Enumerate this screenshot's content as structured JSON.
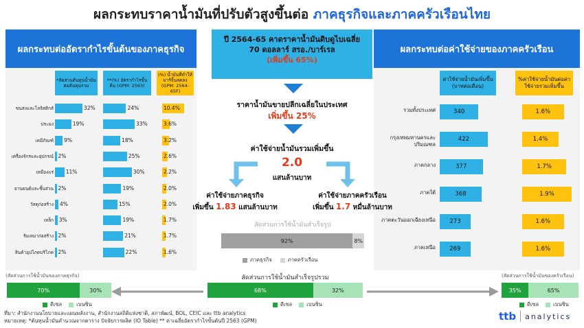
{
  "title": {
    "main": "ผลกระทบราคาน้ำมันที่ปรับตัวสูงขึ้นต่อ ",
    "highlight": "ภาคธุรกิจและภาคครัวเรือนไทย"
  },
  "left_panel": {
    "banner": "ผลกระทบต่ออัตรากำไรขั้นต้นของภาคธุรกิจ",
    "col1": "*สัดส่วนต้นทุนน้ำมันต่อต้นทุนรวม",
    "col2": "**(%) อัตรากำไรขั้นต้น (GPM: 2563)",
    "col3": "(%) น้ำมันที่ทำให้มาร์จิ้นลดลง (GPM: 2564-65F)",
    "rows": [
      {
        "label": "ขนส่งและโลจิสติกส์",
        "share": "32%",
        "share_v": 32,
        "gpm": "24%",
        "gpm_v": 24,
        "drop": "10.4%",
        "drop_v": 10.4
      },
      {
        "label": "ประมง",
        "share": "19%",
        "share_v": 19,
        "gpm": "33%",
        "gpm_v": 33,
        "drop": "3.6%",
        "drop_v": 3.6
      },
      {
        "label": "เคมีภัณฑ์",
        "share": "9%",
        "share_v": 9,
        "gpm": "18%",
        "gpm_v": 18,
        "drop": "3.2%",
        "drop_v": 3.2
      },
      {
        "label": "เครื่องจักรและอุปกรณ์",
        "share": "2%",
        "share_v": 2,
        "gpm": "25%",
        "gpm_v": 25,
        "drop": "2.6%",
        "drop_v": 2.6
      },
      {
        "label": "เหมืองแร่",
        "share": "11%",
        "share_v": 11,
        "gpm": "30%",
        "gpm_v": 30,
        "drop": "2.2%",
        "drop_v": 2.2
      },
      {
        "label": "ยานยนต์และชิ้นส่วน",
        "share": "2%",
        "share_v": 2,
        "gpm": "19%",
        "gpm_v": 19,
        "drop": "2.0%",
        "drop_v": 2.0
      },
      {
        "label": "วัสดุก่อสร้าง",
        "share": "4%",
        "share_v": 4,
        "gpm": "15%",
        "gpm_v": 15,
        "drop": "2.0%",
        "drop_v": 2.0
      },
      {
        "label": "เหล็ก",
        "share": "3%",
        "share_v": 3,
        "gpm": "19%",
        "gpm_v": 19,
        "drop": "1.7%",
        "drop_v": 1.7
      },
      {
        "label": "รับเหมาก่อสร้าง",
        "share": "2%",
        "share_v": 2,
        "gpm": "21%",
        "gpm_v": 21,
        "drop": "1.7%",
        "drop_v": 1.7
      },
      {
        "label": "สินค้าอุปโภคบริโภค",
        "share": "2%",
        "share_v": 2,
        "gpm": "22%",
        "gpm_v": 22,
        "drop": "1.6%",
        "drop_v": 1.6
      }
    ],
    "mix_title": "(สัดส่วนการใช้น้ำมันของภาคธุรกิจ)",
    "mix": [
      {
        "label": "70%",
        "value": 70
      },
      {
        "label": "30%",
        "value": 30
      }
    ]
  },
  "middle": {
    "box_line1": "ปี 2564-65 คาดราคาน้ำมันดิบดูไบเฉลี่ย",
    "box_line2": "70 ดอลลาร์ สรอ./บาร์เรล",
    "box_line3": "(เพิ่มขึ้น 65%)",
    "retail_line1": "ราคาน้ำมันขายปลีกเฉลี่ยในประเทศ",
    "retail_line2": "เพิ่มขึ้น 25%",
    "total_line1": "ค่าใช้จ่ายน้ำมันรวมเพิ่มขึ้น",
    "total_value": "2.0",
    "total_unit": "แสนล้านบาท",
    "biz_line1": "ค่าใช้จ่ายภาคธุรกิจ",
    "biz_prefix": "เพิ่มขึ้น ",
    "biz_value": "1.83",
    "biz_suffix": " แสนล้านบาท",
    "hh_line1": "ค่าใช้จ่ายภาคครัวเรือน",
    "hh_prefix": "เพิ่มขึ้น ",
    "hh_value": "1.7",
    "hh_suffix": " หมื่นล้านบาท",
    "refined_title": "สัดส่วนการใช้น้ำมันสำเร็จรูป",
    "refined": [
      {
        "label": "92%",
        "value": 92
      },
      {
        "label": "8%",
        "value": 8
      }
    ],
    "refined_legend": [
      "ภาคธุรกิจ",
      "ภาคครัวเรือน"
    ],
    "overall_title": "สัดส่วนการใช้น้ำมันสำเร็จรูปรวม",
    "overall": [
      {
        "label": "68%",
        "value": 68
      },
      {
        "label": "32%",
        "value": 32
      }
    ]
  },
  "right_panel": {
    "banner": "ผลกระทบต่อค่าใช้จ่ายของภาคครัวเรือน",
    "col1": "ค่าใช้จ่ายน้ำมันเพิ่มขึ้น (บาทต่อเดือน)",
    "col2": "%ค่าใช้จ่ายน้ำมันต่อค่าใช้จ่ายรวมเพิ่มขึ้น",
    "rows": [
      {
        "label": "รวมทั้งประเทศ",
        "baht": "340",
        "baht_v": 340,
        "pct": "1.6%",
        "pct_v": 1.6
      },
      {
        "label": "กรุงเทพมหานครและปริมณฑล",
        "baht": "422",
        "baht_v": 422,
        "pct": "1.4%",
        "pct_v": 1.4
      },
      {
        "label": "ภาคกลาง",
        "baht": "377",
        "baht_v": 377,
        "pct": "1.7%",
        "pct_v": 1.7
      },
      {
        "label": "ภาคใต้",
        "baht": "368",
        "baht_v": 368,
        "pct": "1.9%",
        "pct_v": 1.9
      },
      {
        "label": "ภาคตะวันออกเฉียงเหนือ",
        "baht": "273",
        "baht_v": 273,
        "pct": "1.6%",
        "pct_v": 1.6
      },
      {
        "label": "ภาคเหนือ",
        "baht": "269",
        "baht_v": 269,
        "pct": "1.6%",
        "pct_v": 1.6
      }
    ],
    "mix_title": "(สัดส่วนการใช้น้ำมันของครัวเรือน)",
    "mix": [
      {
        "label": "35%",
        "value": 35
      },
      {
        "label": "65%",
        "value": 65
      }
    ]
  },
  "fuel_legend": [
    "ดีเซล",
    "เบนซิน"
  ],
  "footer": {
    "source": "ที่มา: สำนักงานนโยบายและแผนพลังงาน, สำนักงานสถิติแห่งชาติ, สภาพัฒน์, BOL, CEIC และ ttb analytics",
    "note": "หมายเหตุ: *ต้นทุนน้ำมันคำนวณจากตาราง ปัจจัยการผลิต (IO Table) ** ค่าเฉลี่ยอัตรากำไรขั้นต้นปี 2563 (GPM)"
  },
  "logo": {
    "brand": "ttb",
    "text": "analytics"
  },
  "colors": {
    "blue": "#2fb1e6",
    "yellow": "#ffc20e",
    "diesel": "#20a33c",
    "benzin": "#a8e3b8",
    "dark_gray": "#a0a0a0",
    "light_gray": "#d6d6d6"
  },
  "chart_data": [
    {
      "type": "bar",
      "title": "ผลกระทบต่ออัตรากำไรขั้นต้นของภาคธุรกิจ",
      "categories": [
        "ขนส่งและโลจิสติกส์",
        "ประมง",
        "เคมีภัณฑ์",
        "เครื่องจักรและอุปกรณ์",
        "เหมืองแร่",
        "ยานยนต์และชิ้นส่วน",
        "วัสดุก่อสร้าง",
        "เหล็ก",
        "รับเหมาก่อสร้าง",
        "สินค้าอุปโภคบริโภค"
      ],
      "series": [
        {
          "name": "*สัดส่วนต้นทุนน้ำมันต่อต้นทุนรวม",
          "values": [
            32,
            19,
            9,
            2,
            11,
            2,
            4,
            3,
            2,
            2
          ]
        },
        {
          "name": "**(%) อัตรากำไรขั้นต้น (GPM: 2563)",
          "values": [
            24,
            33,
            18,
            25,
            30,
            19,
            15,
            19,
            21,
            22
          ]
        },
        {
          "name": "(%) น้ำมันที่ทำให้มาร์จิ้นลดลง (GPM: 2564-65F)",
          "values": [
            10.4,
            3.6,
            3.2,
            2.6,
            2.2,
            2.0,
            2.0,
            1.7,
            1.7,
            1.6
          ]
        }
      ]
    },
    {
      "type": "bar",
      "title": "ผลกระทบต่อค่าใช้จ่ายของภาคครัวเรือน",
      "categories": [
        "รวมทั้งประเทศ",
        "กรุงเทพมหานครและปริมณฑล",
        "ภาคกลาง",
        "ภาคใต้",
        "ภาคตะวันออกเฉียงเหนือ",
        "ภาคเหนือ"
      ],
      "series": [
        {
          "name": "ค่าใช้จ่ายน้ำมันเพิ่มขึ้น (บาทต่อเดือน)",
          "values": [
            340,
            422,
            377,
            368,
            273,
            269
          ]
        },
        {
          "name": "%ค่าใช้จ่ายน้ำมันต่อค่าใช้จ่ายรวมเพิ่มขึ้น",
          "values": [
            1.6,
            1.4,
            1.7,
            1.9,
            1.6,
            1.6
          ]
        }
      ]
    },
    {
      "type": "bar",
      "title": "สัดส่วนการใช้น้ำมันสำเร็จรูป",
      "categories": [
        "ภาคธุรกิจ",
        "ภาคครัวเรือน"
      ],
      "values": [
        92,
        8
      ]
    },
    {
      "type": "bar",
      "title": "สัดส่วนการใช้น้ำมันสำเร็จรูปรวม",
      "categories": [
        "ดีเซล",
        "เบนซิน"
      ],
      "values": [
        68,
        32
      ]
    },
    {
      "type": "bar",
      "title": "(สัดส่วนการใช้น้ำมันของภาคธุรกิจ)",
      "categories": [
        "ดีเซล",
        "เบนซิน"
      ],
      "values": [
        70,
        30
      ]
    },
    {
      "type": "bar",
      "title": "(สัดส่วนการใช้น้ำมันของครัวเรือน)",
      "categories": [
        "ดีเซล",
        "เบนซิน"
      ],
      "values": [
        35,
        65
      ]
    }
  ]
}
